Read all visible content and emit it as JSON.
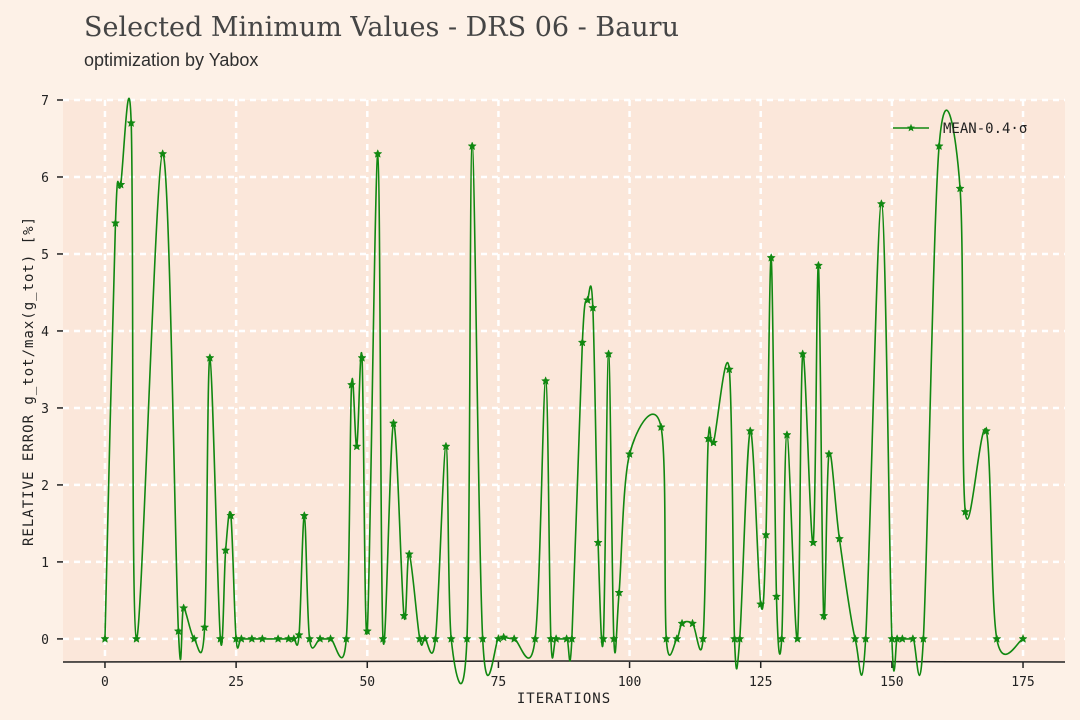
{
  "chart_data": {
    "type": "line",
    "title": "Selected Minimum Values - DRS 06 - Bauru",
    "subtitle": "optimization by Yabox",
    "xlabel": "ITERATIONS",
    "ylabel": "RELATIVE ERROR g_tot/max(g_tot) [%]",
    "xlim": [
      -8,
      183
    ],
    "ylim": [
      -0.3,
      7.0
    ],
    "xticks": [
      0,
      25,
      50,
      75,
      100,
      125,
      150,
      175
    ],
    "yticks": [
      0,
      1,
      2,
      3,
      4,
      5,
      6,
      7
    ],
    "grid": true,
    "legend_position": "top-right",
    "series": [
      {
        "name": "MEAN-0.4·σ",
        "color": "#118811",
        "x": [
          0,
          2,
          3,
          5,
          6,
          11,
          14,
          15,
          17,
          19,
          20,
          22,
          23,
          24,
          25,
          26,
          28,
          30,
          33,
          35,
          36,
          37,
          38,
          39,
          41,
          43,
          46,
          47,
          48,
          49,
          50,
          52,
          53,
          55,
          57,
          58,
          60,
          61,
          63,
          65,
          66,
          69,
          70,
          72,
          75,
          76,
          78,
          82,
          84,
          85,
          86,
          88,
          89,
          91,
          92,
          93,
          94,
          95,
          96,
          97,
          98,
          100,
          106,
          107,
          109,
          110,
          112,
          114,
          115,
          116,
          119,
          120,
          121,
          123,
          125,
          126,
          127,
          128,
          129,
          130,
          132,
          133,
          135,
          136,
          137,
          138,
          140,
          143,
          145,
          148,
          150,
          151,
          152,
          154,
          156,
          159,
          163,
          164,
          168,
          170,
          175
        ],
        "values": [
          0,
          5.4,
          5.9,
          6.7,
          0,
          6.3,
          0.1,
          0.4,
          0,
          0.15,
          3.65,
          0,
          1.15,
          1.6,
          0,
          0,
          0,
          0,
          0,
          0,
          0,
          0.05,
          1.6,
          0,
          0,
          0,
          0,
          3.3,
          2.5,
          3.65,
          0.1,
          6.3,
          0,
          2.8,
          0.3,
          1.1,
          0,
          0,
          0,
          2.5,
          0,
          0,
          6.4,
          0,
          0,
          0.02,
          0,
          0,
          3.35,
          0,
          0,
          0,
          0,
          3.85,
          4.4,
          4.3,
          1.25,
          0,
          3.7,
          0,
          0.6,
          2.4,
          2.75,
          0,
          0,
          0.2,
          0.2,
          0,
          2.6,
          2.55,
          3.5,
          0,
          0,
          2.7,
          0.45,
          1.35,
          4.95,
          0.55,
          0,
          2.65,
          0,
          3.7,
          1.25,
          4.85,
          0.3,
          2.4,
          1.3,
          0,
          0,
          5.65,
          0,
          0,
          0,
          0,
          0,
          6.4,
          5.85,
          1.65,
          2.7,
          0,
          0
        ]
      }
    ]
  }
}
